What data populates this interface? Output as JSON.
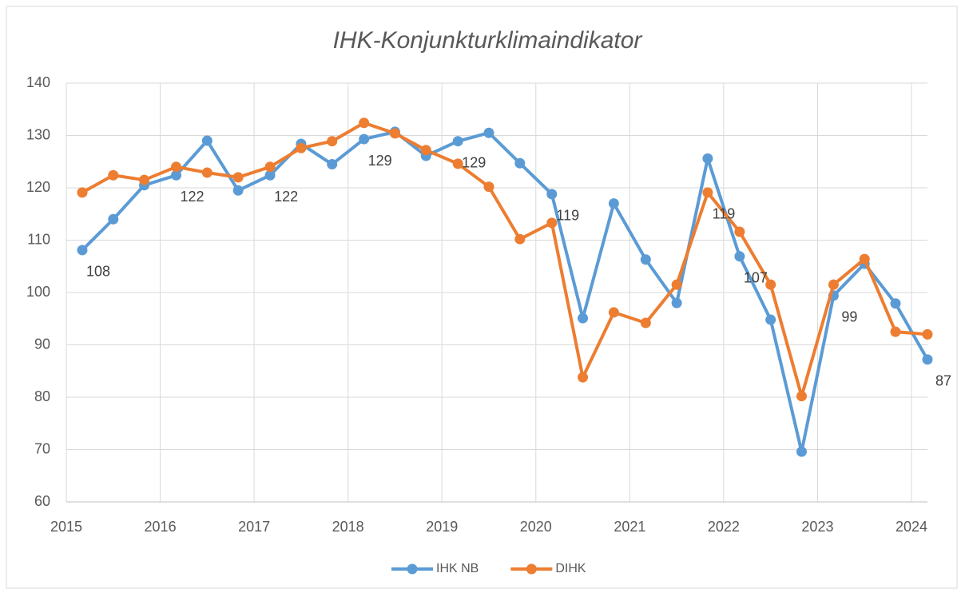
{
  "chart_data": {
    "type": "line",
    "title": "IHK-Konjunkturklimaindikator",
    "x": [
      2015.17,
      2015.5,
      2015.83,
      2016.17,
      2016.5,
      2016.83,
      2017.17,
      2017.5,
      2017.83,
      2018.17,
      2018.5,
      2018.83,
      2019.17,
      2019.5,
      2019.83,
      2020.17,
      2020.5,
      2020.83,
      2021.17,
      2021.5,
      2021.83,
      2022.17,
      2022.5,
      2022.83,
      2023.17,
      2023.5,
      2023.83,
      2024.17
    ],
    "series": [
      {
        "name": "IHK NB",
        "color": "#5b9bd5",
        "values": [
          108.1,
          114,
          120.5,
          122.4,
          129,
          119.5,
          122.4,
          128.4,
          124.5,
          129.3,
          130.7,
          126.1,
          128.9,
          130.5,
          124.7,
          118.8,
          95.1,
          117,
          106.3,
          98,
          125.6,
          106.9,
          94.8,
          69.6,
          99.4,
          105.5,
          97.9,
          87.2
        ],
        "value_labels": [
          "108",
          null,
          null,
          "122",
          null,
          null,
          "122",
          null,
          null,
          "129",
          null,
          null,
          "129",
          null,
          null,
          "119",
          null,
          null,
          null,
          null,
          null,
          "107",
          null,
          null,
          "99",
          null,
          null,
          "87"
        ]
      },
      {
        "name": "DIHK",
        "color": "#ed7d31",
        "values": [
          119.1,
          122.4,
          121.5,
          124,
          122.9,
          122,
          124,
          127.6,
          128.9,
          132.4,
          130.4,
          127.2,
          124.6,
          120.2,
          110.2,
          113.3,
          83.8,
          96.2,
          94.2,
          101.5,
          119.1,
          111.6,
          101.5,
          80.2,
          101.5,
          106.4,
          92.5,
          92
        ],
        "value_labels": [
          null,
          null,
          null,
          null,
          null,
          null,
          null,
          null,
          null,
          null,
          null,
          null,
          null,
          null,
          null,
          null,
          null,
          null,
          null,
          null,
          "119",
          null,
          null,
          null,
          null,
          null,
          null,
          null
        ]
      }
    ],
    "xlim": [
      2015,
      2024.17
    ],
    "xticks": [
      2015,
      2016,
      2017,
      2018,
      2019,
      2020,
      2021,
      2022,
      2023,
      2024
    ],
    "ylim": [
      60,
      140
    ],
    "yticks": [
      60,
      70,
      80,
      90,
      100,
      110,
      120,
      130,
      140
    ],
    "grid": true,
    "legend": "bottom"
  }
}
